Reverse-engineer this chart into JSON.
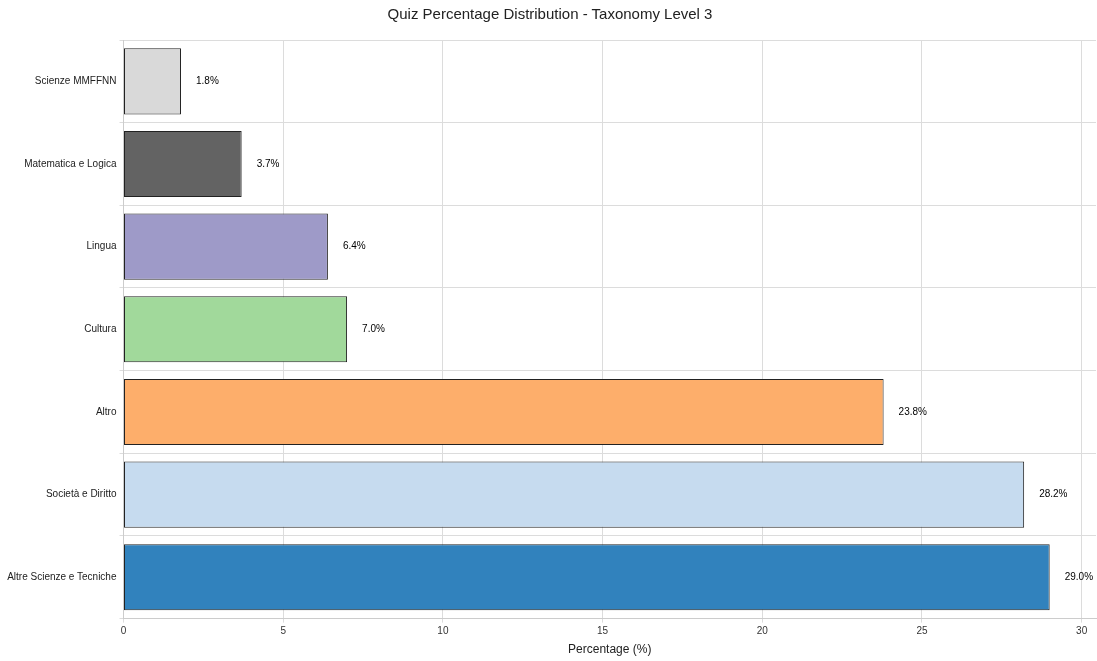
{
  "chart_data": {
    "type": "bar",
    "orientation": "horizontal",
    "title": "Quiz Percentage Distribution - Taxonomy Level 3",
    "xlabel": "Percentage (%)",
    "categories": [
      "Scienze MMFFNN",
      "Matematica e Logica",
      "Lingua",
      "Cultura",
      "Altro",
      "Società e Diritto",
      "Altre Scienze e Tecniche"
    ],
    "values": [
      1.8,
      3.7,
      6.4,
      7.0,
      23.8,
      28.2,
      29.0
    ],
    "colors": [
      "#d9d9d9",
      "#636363",
      "#9e9ac8",
      "#a1d99b",
      "#fdae6b",
      "#c6dbef",
      "#3182bd"
    ],
    "value_labels": [
      "1.8%",
      "3.7%",
      "6.4%",
      "7.0%",
      "23.8%",
      "28.2%",
      "29.0%"
    ],
    "xlim": [
      0,
      30.45
    ],
    "xticks": [
      0,
      5,
      10,
      15,
      20,
      25,
      30
    ],
    "grid": true,
    "legend": false
  }
}
